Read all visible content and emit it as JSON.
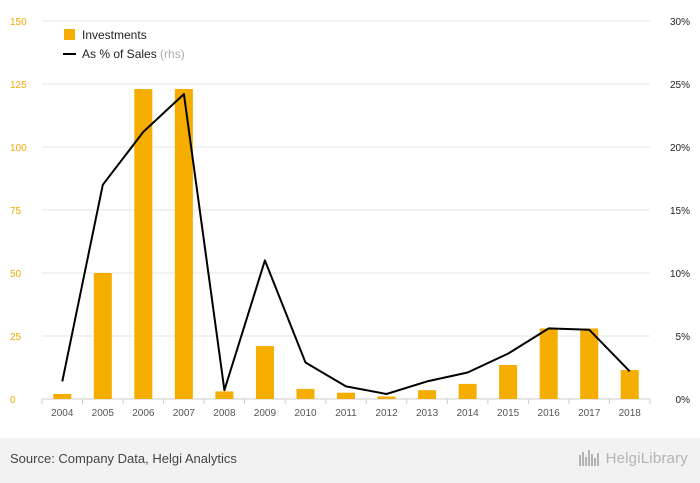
{
  "chart_data": {
    "type": "bar",
    "categories": [
      "2004",
      "2005",
      "2006",
      "2007",
      "2008",
      "2009",
      "2010",
      "2011",
      "2012",
      "2013",
      "2014",
      "2015",
      "2016",
      "2017",
      "2018"
    ],
    "series": [
      {
        "name": "Investments",
        "type": "bar",
        "axis": "left",
        "color": "#f5ad00",
        "values": [
          2,
          50,
          123,
          123,
          3,
          21,
          4,
          2.5,
          1,
          3.5,
          6,
          13.5,
          28,
          28,
          11.5
        ]
      },
      {
        "name": "As % of Sales",
        "name_suffix": "(rhs)",
        "type": "line",
        "axis": "right",
        "color": "#000000",
        "values": [
          1.4,
          17.0,
          21.2,
          24.2,
          0.7,
          11.0,
          2.9,
          1.0,
          0.4,
          1.4,
          2.1,
          3.6,
          5.6,
          5.5,
          2.2
        ]
      }
    ],
    "ylim_left": [
      0,
      150
    ],
    "yticks_left": [
      "0",
      "25",
      "50",
      "75",
      "100",
      "125",
      "150"
    ],
    "ylim_right": [
      0,
      30
    ],
    "yticks_right": [
      "0%",
      "5%",
      "10%",
      "15%",
      "20%",
      "25%",
      "30%"
    ],
    "grid": true,
    "legend_position": "top-left"
  },
  "footer": {
    "source": "Source: Company Data, Helgi Analytics",
    "brand": "HelgiLibrary"
  },
  "colors": {
    "bar": "#f5ad00",
    "line": "#000000",
    "left_tick": "#f0a800",
    "grid": "#e6e6e6",
    "footer_bg": "#f2f2f2"
  }
}
